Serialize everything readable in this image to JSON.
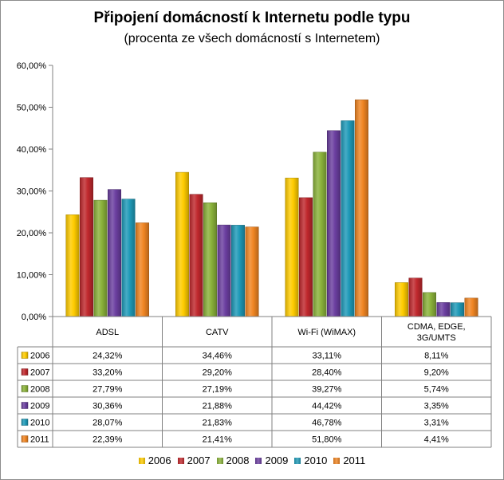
{
  "chart_data": {
    "type": "bar",
    "title": "Připojení domácností k Internetu podle typu",
    "subtitle": "(procenta ze všech domácností s Internetem)",
    "categories": [
      "ADSL",
      "CATV",
      "Wi-Fi (WiMAX)",
      "CDMA, EDGE, 3G/UMTS"
    ],
    "ylim": [
      0,
      60
    ],
    "yticks": [
      "0,00%",
      "10,00%",
      "20,00%",
      "30,00%",
      "40,00%",
      "50,00%",
      "60,00%"
    ],
    "grid": false,
    "legend_position": "bottom",
    "data_table": true,
    "series": [
      {
        "name": "2006",
        "color": "#FFCC00",
        "values": [
          24.32,
          34.46,
          33.11,
          8.11
        ],
        "labels": [
          "24,32%",
          "34,46%",
          "33,11%",
          "8,11%"
        ]
      },
      {
        "name": "2007",
        "color": "#C0282D",
        "values": [
          33.2,
          29.2,
          28.4,
          9.2
        ],
        "labels": [
          "33,20%",
          "29,20%",
          "28,40%",
          "9,20%"
        ]
      },
      {
        "name": "2008",
        "color": "#8AB23A",
        "values": [
          27.79,
          27.19,
          39.27,
          5.74
        ],
        "labels": [
          "27,79%",
          "27,19%",
          "39,27%",
          "5,74%"
        ]
      },
      {
        "name": "2009",
        "color": "#6B3FA0",
        "values": [
          30.36,
          21.88,
          44.42,
          3.35
        ],
        "labels": [
          "30,36%",
          "21,88%",
          "44,42%",
          "3,35%"
        ]
      },
      {
        "name": "2010",
        "color": "#1F9AB8",
        "values": [
          28.07,
          21.83,
          46.78,
          3.31
        ],
        "labels": [
          "28,07%",
          "21,83%",
          "46,78%",
          "3,31%"
        ]
      },
      {
        "name": "2011",
        "color": "#F08522",
        "values": [
          22.39,
          21.41,
          51.8,
          4.41
        ],
        "labels": [
          "22,39%",
          "21,41%",
          "51,80%",
          "4,41%"
        ]
      }
    ]
  }
}
